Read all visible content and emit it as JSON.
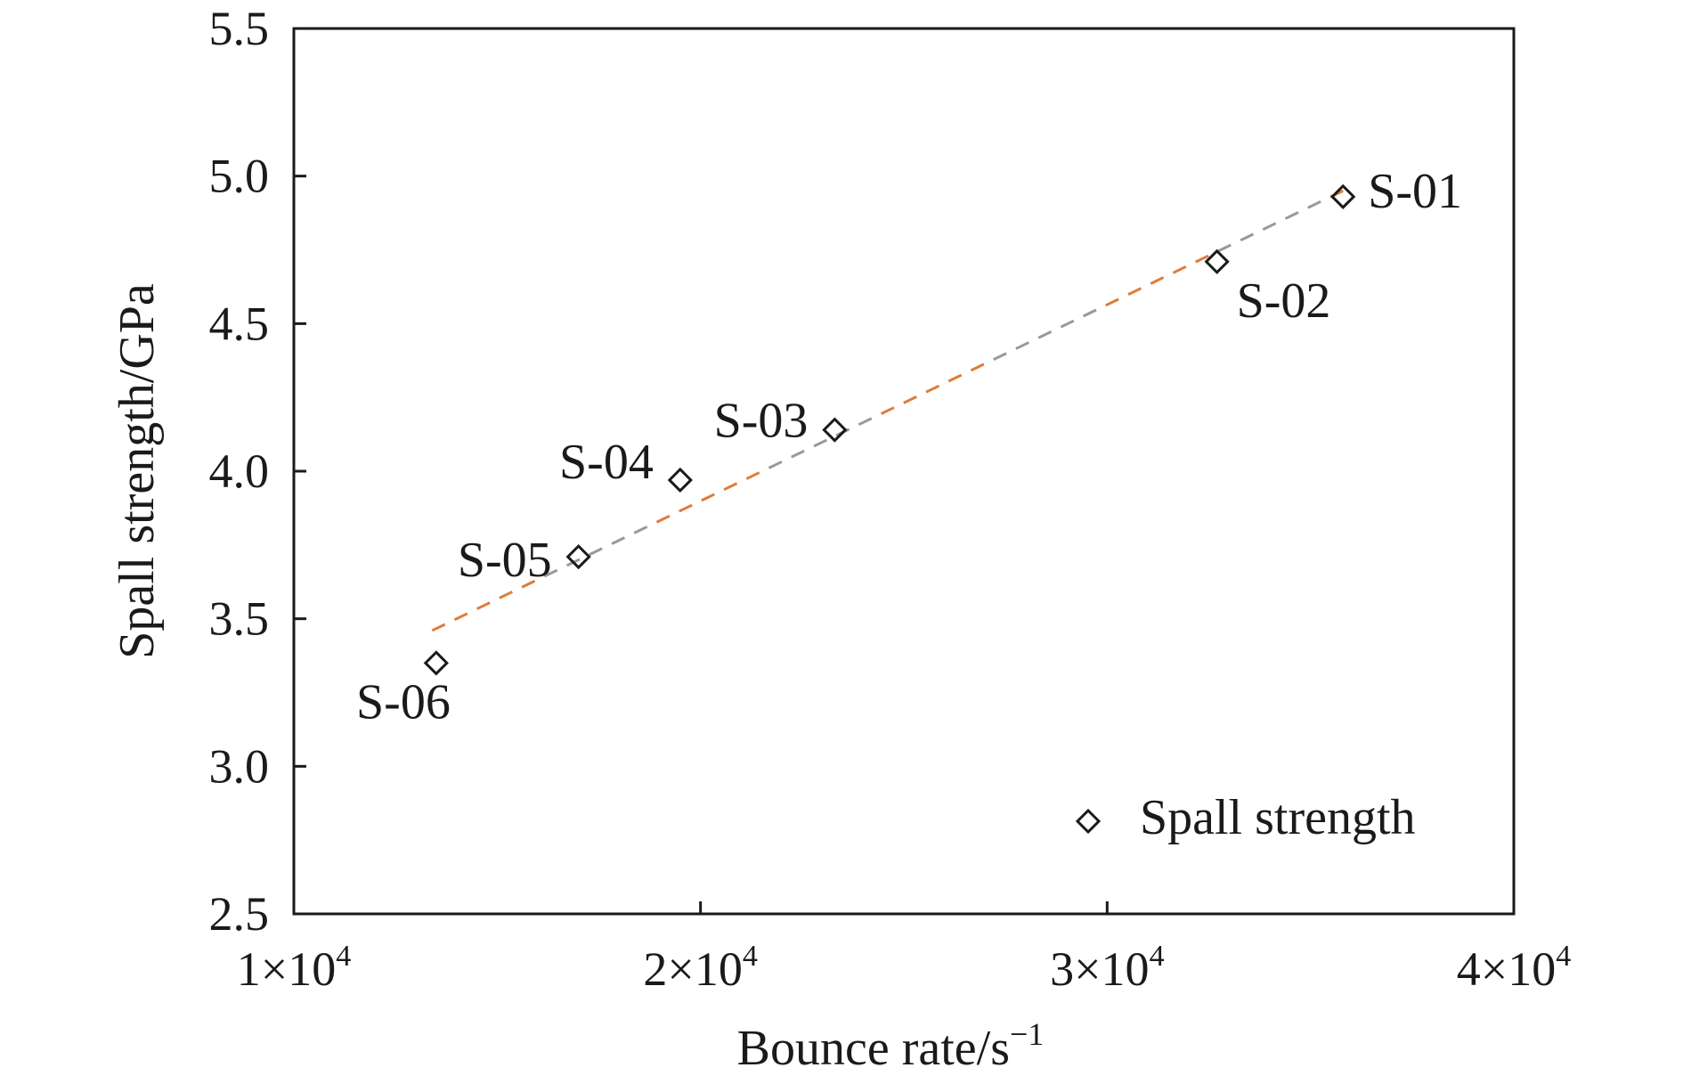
{
  "chart_data": {
    "type": "scatter",
    "title": "",
    "xlabel": "Bounce rate/s",
    "xlabel_sup": "−1",
    "ylabel": "Spall strength/GPa",
    "xlim": [
      10000,
      40000
    ],
    "ylim": [
      2.5,
      5.5
    ],
    "xticks": [
      10000,
      20000,
      30000,
      40000
    ],
    "xtick_labels": [
      {
        "base": "1×10",
        "exp": "4"
      },
      {
        "base": "2×10",
        "exp": "4"
      },
      {
        "base": "3×10",
        "exp": "4"
      },
      {
        "base": "4×10",
        "exp": "4"
      }
    ],
    "yticks": [
      2.5,
      3.0,
      3.5,
      4.0,
      4.5,
      5.0,
      5.5
    ],
    "ytick_labels": [
      "2.5",
      "3.0",
      "3.5",
      "4.0",
      "4.5",
      "5.0",
      "5.5"
    ],
    "grid": false,
    "legend": {
      "position": "bottom-right",
      "entries": [
        "Spall strength"
      ]
    },
    "series": [
      {
        "name": "Spall strength",
        "marker": "diamond-open",
        "color": "#1a1a1a",
        "points": [
          {
            "x": 35800,
            "y": 4.93,
            "label": "S-01"
          },
          {
            "x": 32700,
            "y": 4.71,
            "label": "S-02"
          },
          {
            "x": 23300,
            "y": 4.14,
            "label": "S-03"
          },
          {
            "x": 19500,
            "y": 3.97,
            "label": "S-04"
          },
          {
            "x": 17000,
            "y": 3.71,
            "label": "S-05"
          },
          {
            "x": 13500,
            "y": 3.35,
            "label": "S-06"
          }
        ]
      }
    ],
    "fit_line": {
      "style": "dashed",
      "colors": [
        "#e07b39",
        "#999999"
      ],
      "x": [
        13400,
        35800
      ],
      "y": [
        3.46,
        4.95
      ]
    }
  }
}
